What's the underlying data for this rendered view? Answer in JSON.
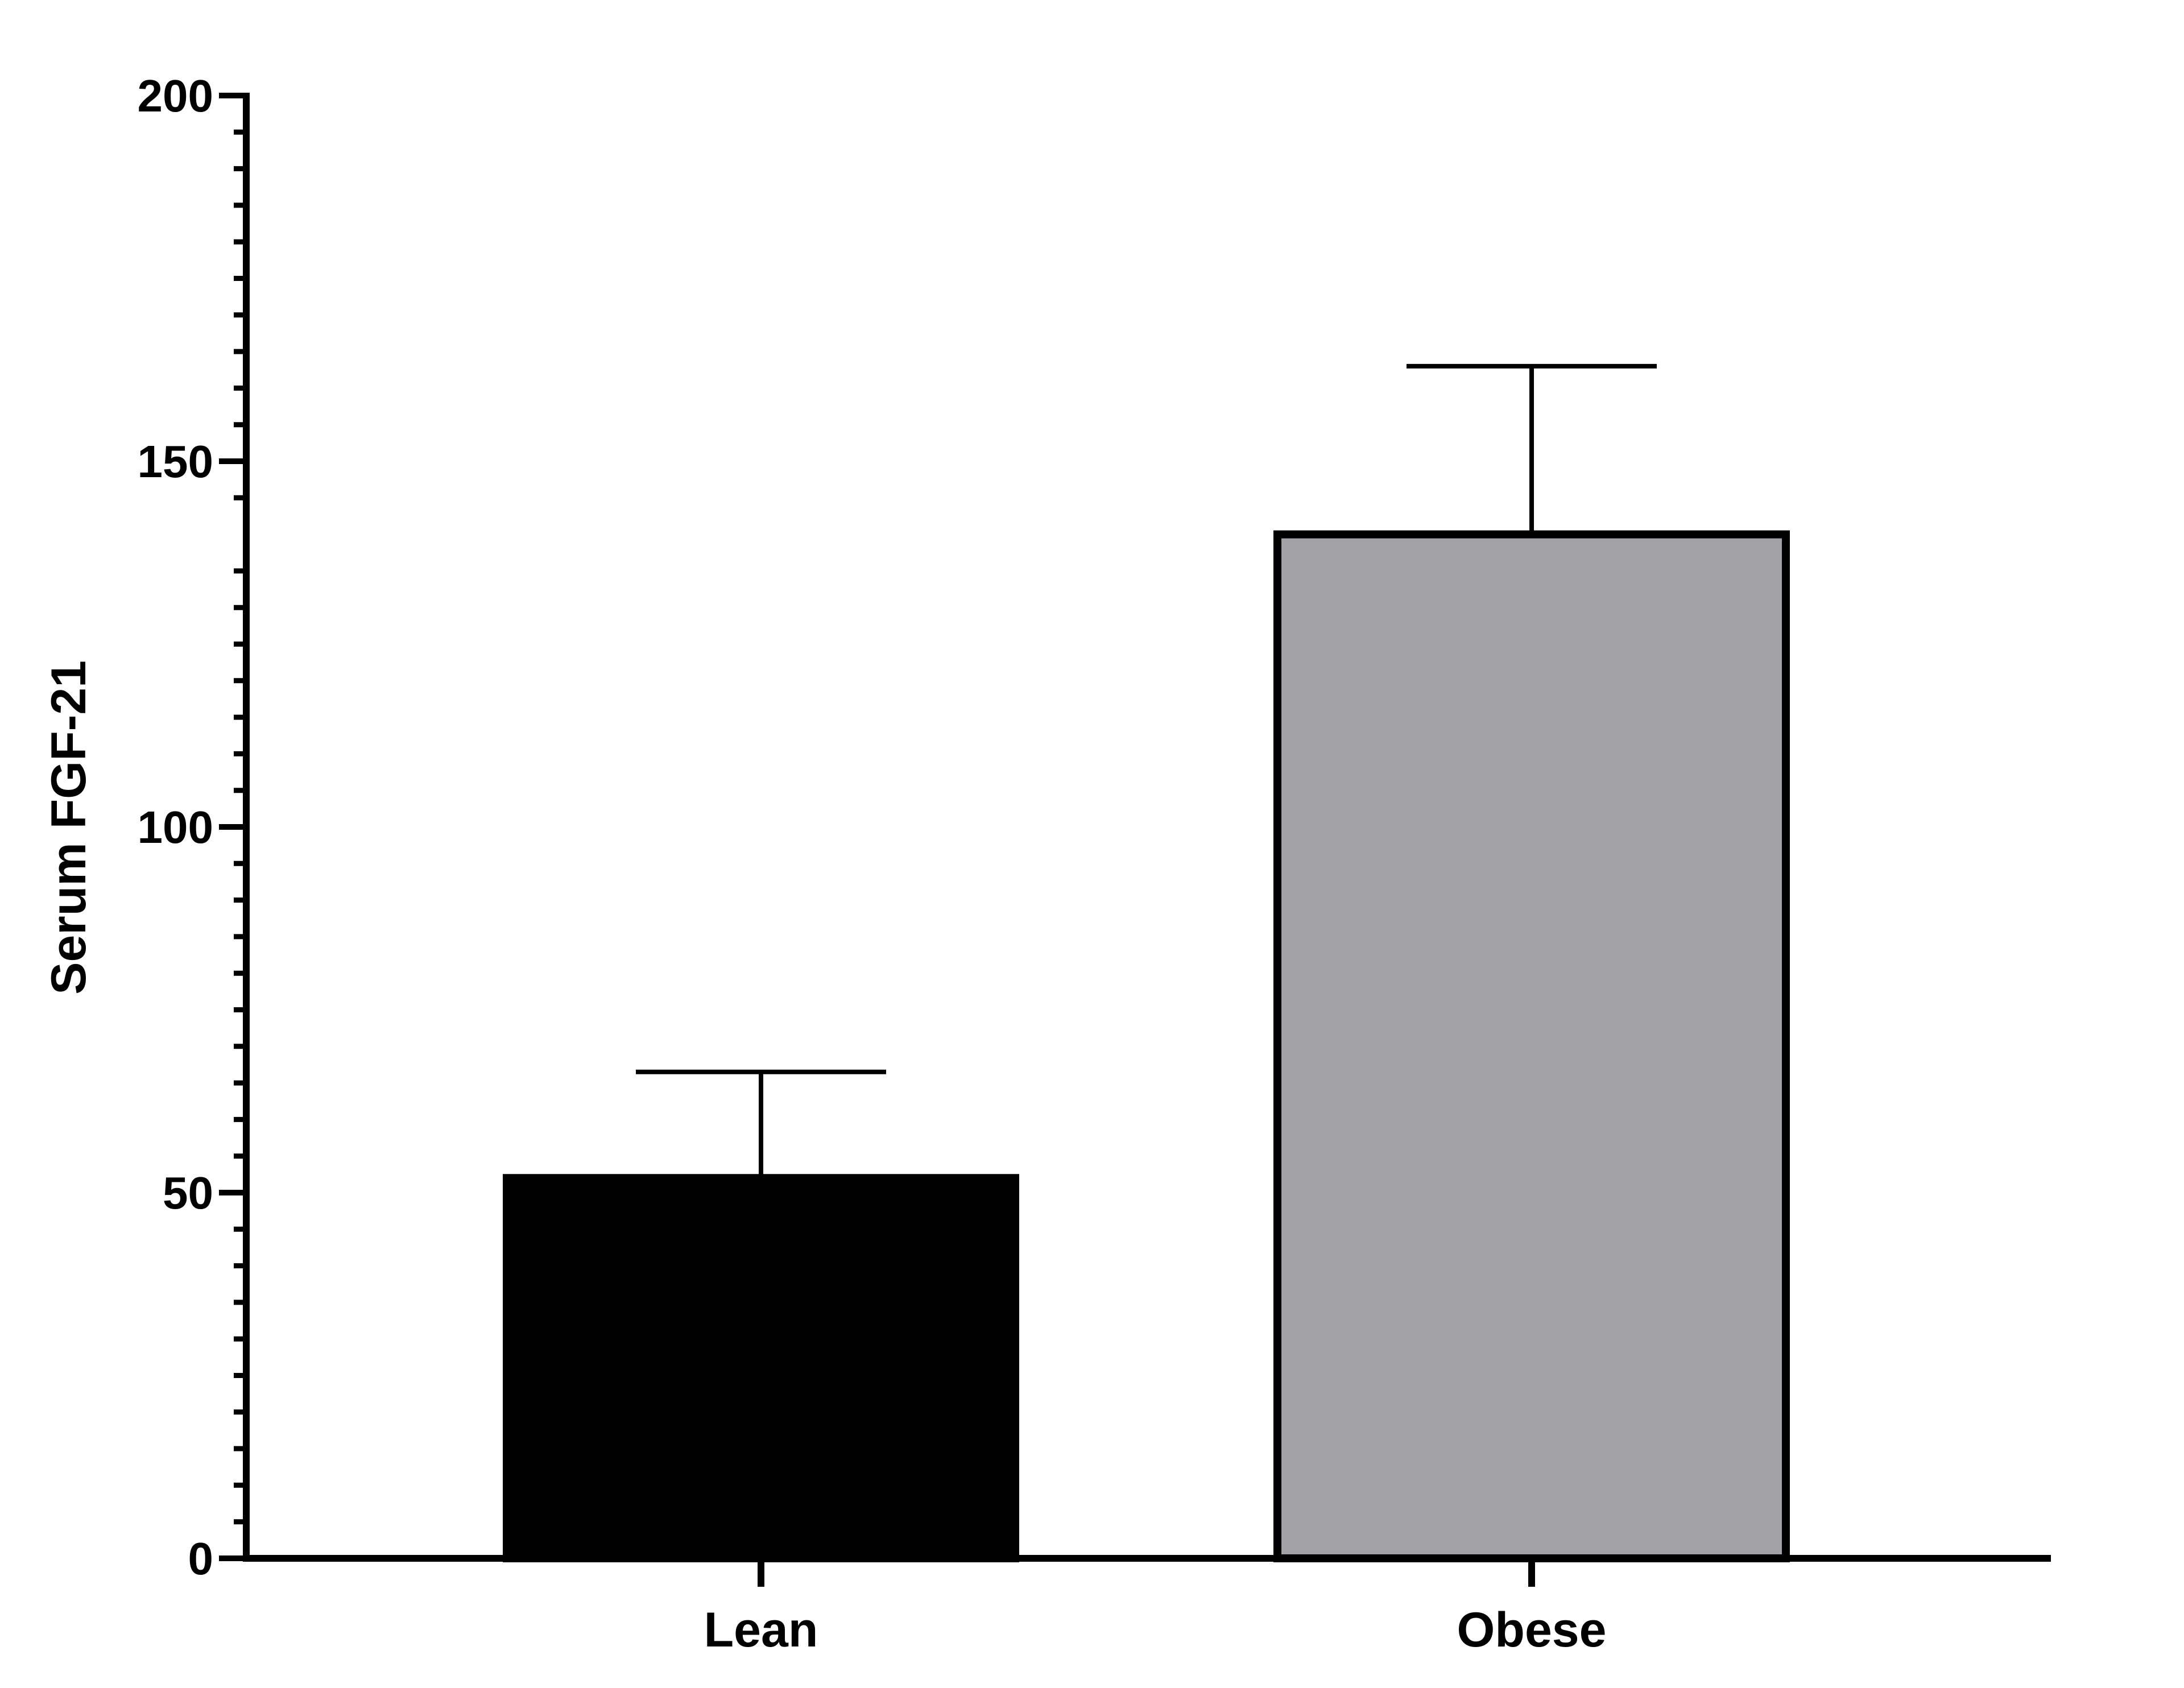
{
  "chart_data": {
    "type": "bar",
    "y_label": "Serum FGF-21",
    "categories": [
      "Lean",
      "Obese"
    ],
    "values": [
      52,
      140
    ],
    "errors": [
      14.5,
      23
    ],
    "colors": [
      "#000000",
      "#a2a1a5"
    ],
    "ylim": [
      0,
      200
    ],
    "yticks": [
      0,
      50,
      100,
      150,
      200
    ],
    "yminorticks": [
      5,
      10,
      15,
      20,
      25,
      30,
      35,
      40,
      45,
      55,
      60,
      65,
      70,
      75,
      80,
      85,
      90,
      95,
      105,
      110,
      115,
      120,
      125,
      130,
      135,
      145,
      150,
      155,
      160,
      165,
      170,
      175,
      180,
      185,
      190,
      195
    ],
    "grid": false
  }
}
